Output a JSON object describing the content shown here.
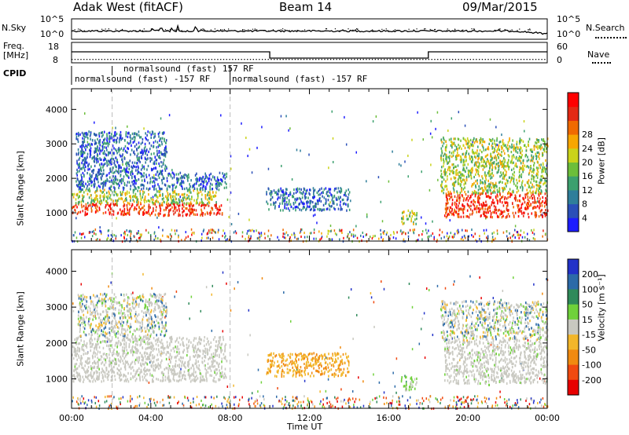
{
  "header": {
    "radar": "Adak West (fitACF)",
    "beam": "Beam 14",
    "date": "09/Mar/2015"
  },
  "noise_panel": {
    "left_label": "N.Sky",
    "right_label": "N.Search",
    "ticks_left": [
      "10^5",
      "10^0"
    ],
    "ticks_right": [
      "10^5",
      "10^0"
    ]
  },
  "freq_panel": {
    "left_label_1": "Freq.",
    "left_label_2": "[MHz]",
    "left_ticks": [
      "18",
      "8"
    ],
    "right_ticks": [
      "60",
      "0"
    ],
    "right_label": "Nave"
  },
  "cpid": {
    "label": "CPID",
    "segments": [
      {
        "text": "normalsound (fast) -157 RF",
        "start_h": 0.0,
        "end_h": 8.0,
        "row": 2
      },
      {
        "text": "normalsound (fast) 157 RF",
        "start_h": 2.05,
        "end_h": 8.0,
        "row": 1
      },
      {
        "text": "normalsound (fast) -157 RF",
        "start_h": 8.0,
        "end_h": 24.0,
        "row": 2
      }
    ]
  },
  "x_axis": {
    "label": "Time UT",
    "ticks": [
      "00:00",
      "04:00",
      "08:00",
      "12:00",
      "16:00",
      "20:00",
      "00:00"
    ],
    "range_h": [
      0,
      24
    ]
  },
  "chart_data": [
    {
      "type": "heatmap",
      "name": "power",
      "ylabel": "Slant Range [km]",
      "ylim": [
        180,
        4600
      ],
      "yticks": [
        "1000",
        "2000",
        "3000",
        "4000"
      ],
      "colorbar_label": "Power [dB]",
      "colorbar_ticks": [
        "4",
        "8",
        "12",
        "16",
        "20",
        "24",
        "28"
      ],
      "colorbar_colors": [
        "#1c1cff",
        "#2a4fb8",
        "#2f7e9a",
        "#3ca06e",
        "#6cbe3a",
        "#cad31a",
        "#f7a600",
        "#f06a00",
        "#e32a14",
        "#ff0000"
      ],
      "features": [
        {
          "t0": 0.0,
          "t1": 7.6,
          "r0": 950,
          "r1": 1300,
          "level": "high"
        },
        {
          "t0": 0.0,
          "t1": 7.3,
          "r0": 1300,
          "r1": 1700,
          "level": "mid"
        },
        {
          "t0": 0.2,
          "t1": 7.8,
          "r0": 1700,
          "r1": 2200,
          "level": "low"
        },
        {
          "t0": 0.2,
          "t1": 4.8,
          "r0": 2200,
          "r1": 3400,
          "level": "low"
        },
        {
          "t0": 9.8,
          "t1": 14.0,
          "r0": 1100,
          "r1": 1750,
          "level": "low"
        },
        {
          "t0": 16.6,
          "t1": 17.4,
          "r0": 700,
          "r1": 1100,
          "level": "mid"
        },
        {
          "t0": 18.8,
          "t1": 24.0,
          "r0": 900,
          "r1": 1600,
          "level": "high"
        },
        {
          "t0": 18.6,
          "t1": 24.0,
          "r0": 1600,
          "r1": 3200,
          "level": "mid"
        }
      ]
    },
    {
      "type": "heatmap",
      "name": "velocity",
      "ylabel": "Slant Range [km]",
      "ylim": [
        180,
        4600
      ],
      "yticks": [
        "1000",
        "2000",
        "3000",
        "4000"
      ],
      "colorbar_label": "Velocity [m s⁻¹]",
      "colorbar_ticks": [
        "200",
        "100",
        "50",
        "15",
        "-15",
        "-50",
        "-100",
        "-200"
      ],
      "colorbar_colors": [
        "#2232c8",
        "#2c6aa8",
        "#2f8a5a",
        "#6fd13a",
        "#c8c8c0",
        "#f2b62a",
        "#f08a10",
        "#f04a10",
        "#e80000"
      ],
      "features": [
        {
          "t0": 0.0,
          "t1": 7.8,
          "r0": 950,
          "r1": 2200,
          "class": "ground"
        },
        {
          "t0": 0.3,
          "t1": 4.8,
          "r0": 2200,
          "r1": 3400,
          "class": "mixed"
        },
        {
          "t0": 9.8,
          "t1": 14.0,
          "r0": 1100,
          "r1": 1750,
          "class": "slow-neg"
        },
        {
          "t0": 16.6,
          "t1": 17.4,
          "r0": 700,
          "r1": 1100,
          "class": "slow-pos"
        },
        {
          "t0": 18.8,
          "t1": 24.0,
          "r0": 900,
          "r1": 2100,
          "class": "ground"
        },
        {
          "t0": 18.6,
          "t1": 24.0,
          "r0": 2100,
          "r1": 3200,
          "class": "mixed"
        }
      ]
    }
  ]
}
